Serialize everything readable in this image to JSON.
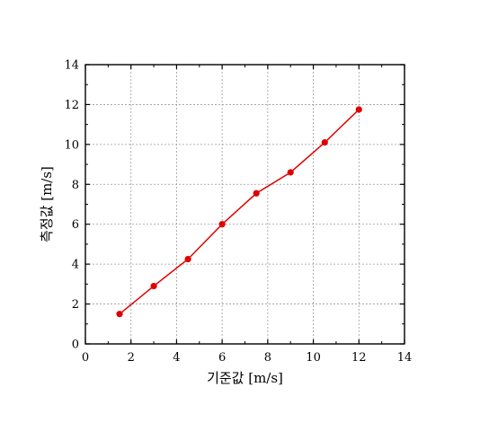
{
  "chart_data": {
    "type": "line",
    "xlabel": "기준값 [m/s]",
    "ylabel": "측정값 [m/s]",
    "xlim": [
      0,
      14
    ],
    "ylim": [
      0,
      14
    ],
    "xticks": [
      0,
      2,
      4,
      6,
      8,
      10,
      12,
      14
    ],
    "yticks": [
      0,
      2,
      4,
      6,
      8,
      10,
      12,
      14
    ],
    "grid": true,
    "series": [
      {
        "color": "#e00000",
        "x": [
          1.5,
          3.0,
          4.5,
          6.0,
          7.5,
          9.0,
          10.5,
          12.0
        ],
        "y": [
          1.5,
          2.9,
          4.25,
          6.0,
          7.55,
          8.6,
          10.1,
          11.75
        ]
      }
    ]
  }
}
